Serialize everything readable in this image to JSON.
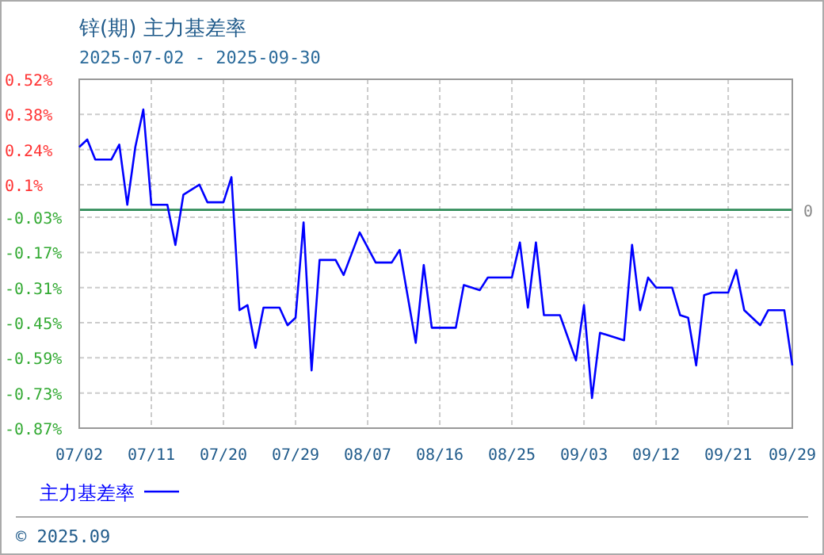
{
  "chart_data": {
    "type": "line",
    "title": "锌(期) 主力基差率",
    "subtitle": "2025-07-02 - 2025-09-30",
    "x": [
      "2025-07-02",
      "2025-07-03",
      "2025-07-04",
      "2025-07-06",
      "2025-07-07",
      "2025-07-08",
      "2025-07-09",
      "2025-07-10",
      "2025-07-11",
      "2025-07-13",
      "2025-07-14",
      "2025-07-15",
      "2025-07-17",
      "2025-07-18",
      "2025-07-20",
      "2025-07-21",
      "2025-07-22",
      "2025-07-23",
      "2025-07-24",
      "2025-07-25",
      "2025-07-27",
      "2025-07-28",
      "2025-07-29",
      "2025-07-30",
      "2025-07-31",
      "2025-08-01",
      "2025-08-03",
      "2025-08-04",
      "2025-08-06",
      "2025-08-08",
      "2025-08-10",
      "2025-08-11",
      "2025-08-13",
      "2025-08-14",
      "2025-08-15",
      "2025-08-18",
      "2025-08-19",
      "2025-08-21",
      "2025-08-22",
      "2025-08-25",
      "2025-08-26",
      "2025-08-27",
      "2025-08-28",
      "2025-08-29",
      "2025-08-31",
      "2025-09-02",
      "2025-09-03",
      "2025-09-04",
      "2025-09-05",
      "2025-09-08",
      "2025-09-09",
      "2025-09-10",
      "2025-09-11",
      "2025-09-12",
      "2025-09-14",
      "2025-09-15",
      "2025-09-16",
      "2025-09-17",
      "2025-09-18",
      "2025-09-19",
      "2025-09-21",
      "2025-09-22",
      "2025-09-23",
      "2025-09-25",
      "2025-09-26",
      "2025-09-28",
      "2025-09-29"
    ],
    "series": [
      {
        "name": "主力基差率",
        "color": "#0000ff",
        "values": [
          0.25,
          0.28,
          0.2,
          0.2,
          0.26,
          0.02,
          0.25,
          0.4,
          0.02,
          0.02,
          -0.14,
          0.06,
          0.1,
          0.03,
          0.03,
          0.13,
          -0.4,
          -0.38,
          -0.55,
          -0.39,
          -0.39,
          -0.46,
          -0.43,
          -0.05,
          -0.64,
          -0.2,
          -0.2,
          -0.26,
          -0.09,
          -0.21,
          -0.21,
          -0.16,
          -0.53,
          -0.22,
          -0.47,
          -0.47,
          -0.3,
          -0.32,
          -0.27,
          -0.27,
          -0.13,
          -0.39,
          -0.13,
          -0.42,
          -0.42,
          -0.6,
          -0.38,
          -0.75,
          -0.49,
          -0.52,
          -0.14,
          -0.4,
          -0.27,
          -0.31,
          -0.31,
          -0.42,
          -0.43,
          -0.62,
          -0.34,
          -0.33,
          -0.33,
          -0.24,
          -0.4,
          -0.46,
          -0.4,
          -0.4,
          -0.62
        ]
      }
    ],
    "xlim": [
      "2025-07-02",
      "2025-09-29"
    ],
    "xticks": [
      {
        "value": "2025-07-02",
        "label": "07/02"
      },
      {
        "value": "2025-07-11",
        "label": "07/11"
      },
      {
        "value": "2025-07-20",
        "label": "07/20"
      },
      {
        "value": "2025-07-29",
        "label": "07/29"
      },
      {
        "value": "2025-08-07",
        "label": "08/07"
      },
      {
        "value": "2025-08-16",
        "label": "08/16"
      },
      {
        "value": "2025-08-25",
        "label": "08/25"
      },
      {
        "value": "2025-09-03",
        "label": "09/03"
      },
      {
        "value": "2025-09-12",
        "label": "09/12"
      },
      {
        "value": "2025-09-21",
        "label": "09/21"
      },
      {
        "value": "2025-09-29",
        "label": "09/29"
      }
    ],
    "ylim": [
      -0.87,
      0.52
    ],
    "yticks": [
      {
        "value": 0.52,
        "label": "0.52%"
      },
      {
        "value": 0.38,
        "label": "0.38%"
      },
      {
        "value": 0.24,
        "label": "0.24%"
      },
      {
        "value": 0.1,
        "label": "0.1%"
      },
      {
        "value": -0.03,
        "label": "-0.03%"
      },
      {
        "value": -0.17,
        "label": "-0.17%"
      },
      {
        "value": -0.31,
        "label": "-0.31%"
      },
      {
        "value": -0.45,
        "label": "-0.45%"
      },
      {
        "value": -0.59,
        "label": "-0.59%"
      },
      {
        "value": -0.73,
        "label": "-0.73%"
      },
      {
        "value": -0.87,
        "label": "-0.87%"
      }
    ],
    "ref_lines": [
      {
        "axis": "y",
        "value": 0,
        "label": "0",
        "color": "#2e8b57"
      }
    ],
    "grid": true,
    "legend": "bottom",
    "line_style": "solid",
    "marker": "none",
    "annotations": [
      "© 2025.09"
    ]
  }
}
